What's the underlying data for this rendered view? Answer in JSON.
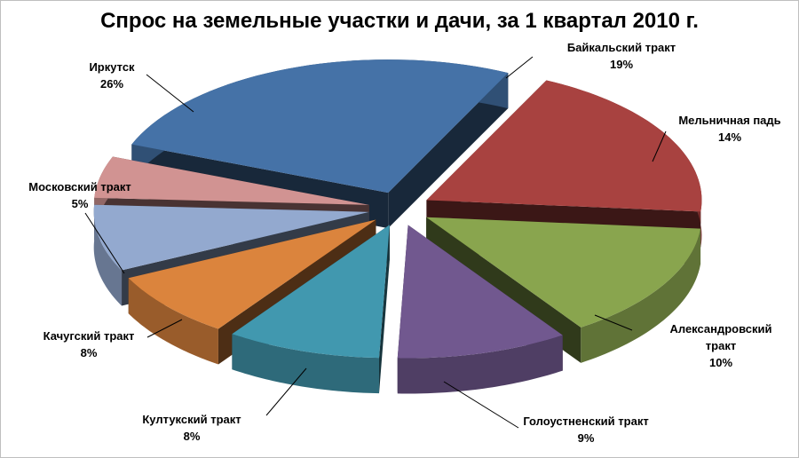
{
  "chart_data": {
    "type": "pie",
    "title": "Спрос на земельные участки и дачи, за 1 квартал 2010 г.",
    "slices": [
      {
        "label": "Байкальский тракт",
        "label_lines": [
          "Байкальский тракт"
        ],
        "percent_text": "19%",
        "value": 19,
        "color": "#a84240"
      },
      {
        "label": "Мельничная падь",
        "label_lines": [
          "Мельничная падь"
        ],
        "percent_text": "14%",
        "value": 14,
        "color": "#89a54e"
      },
      {
        "label": "Александровский тракт",
        "label_lines": [
          "Александровский",
          "тракт"
        ],
        "percent_text": "10%",
        "value": 10,
        "color": "#71588f"
      },
      {
        "label": "Голоустненский тракт",
        "label_lines": [
          "Голоустненский тракт"
        ],
        "percent_text": "9%",
        "value": 9,
        "color": "#4198af"
      },
      {
        "label": "Култукский тракт",
        "label_lines": [
          "Култукский тракт"
        ],
        "percent_text": "8%",
        "value": 8,
        "color": "#db843d"
      },
      {
        "label": "Качугский тракт",
        "label_lines": [
          "Качугский тракт"
        ],
        "percent_text": "8%",
        "value": 8,
        "color": "#93a9cf"
      },
      {
        "label": "Московский тракт",
        "label_lines": [
          "Московский тракт"
        ],
        "percent_text": "5%",
        "value": 5,
        "color": "#d19392"
      },
      {
        "label": "Иркутск",
        "label_lines": [
          "Иркутск"
        ],
        "percent_text": "26%",
        "value": 26,
        "color": "#4572a7"
      }
    ]
  }
}
